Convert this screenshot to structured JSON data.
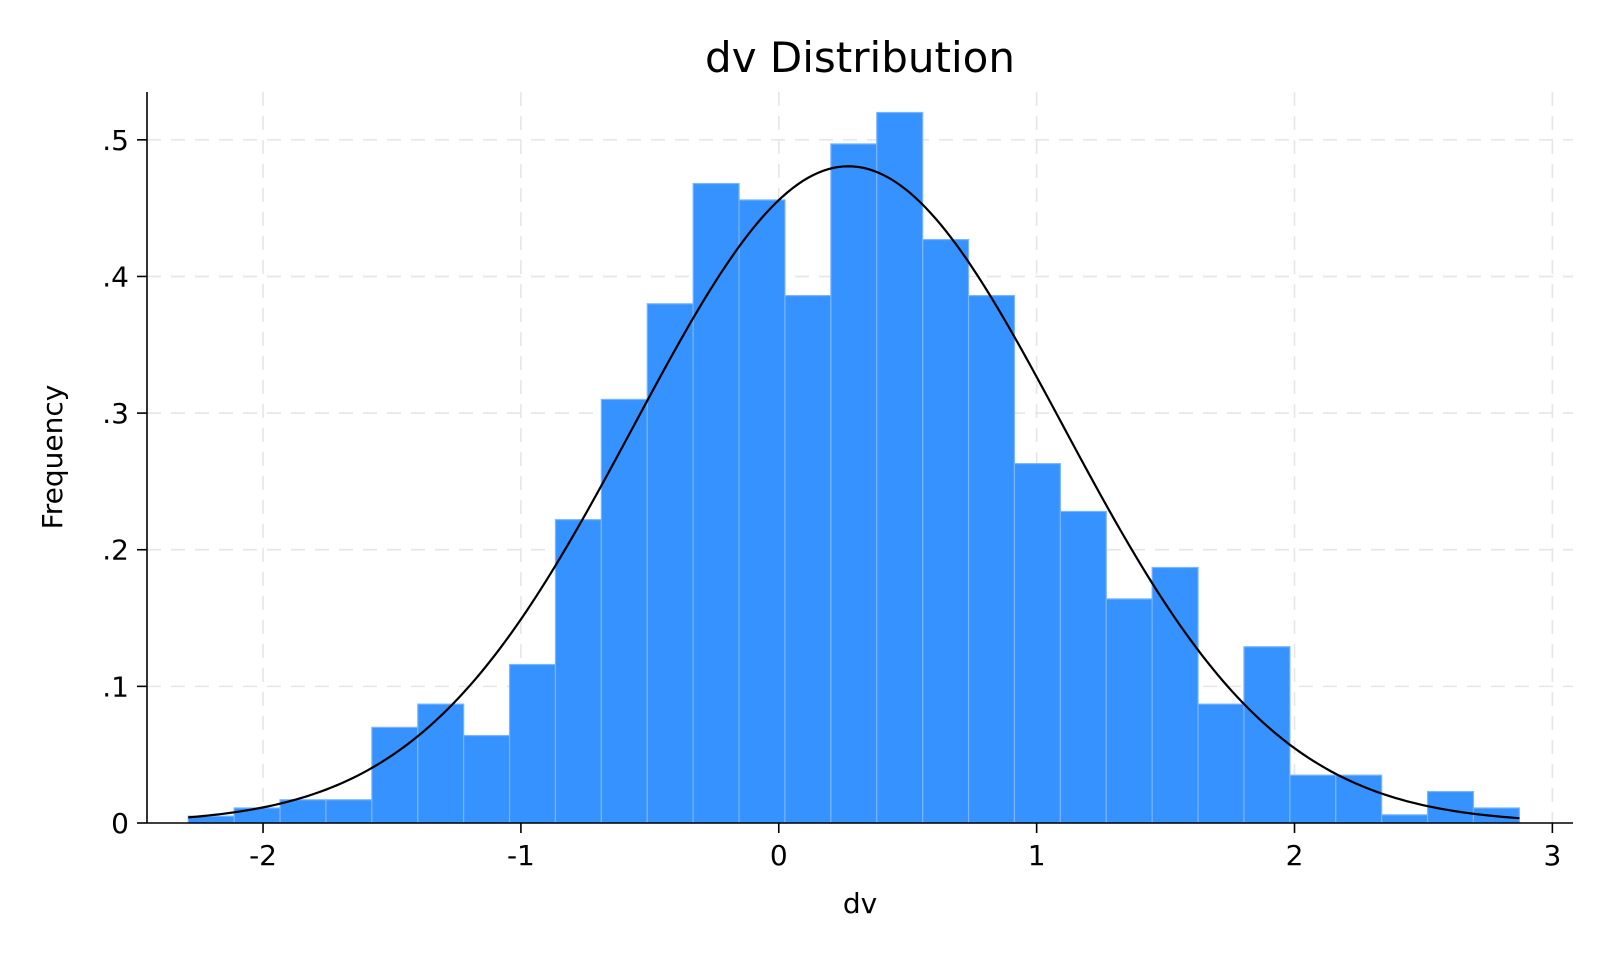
{
  "chart_data": {
    "type": "bar",
    "title": "dv Distribution",
    "xlabel": "dv",
    "ylabel": "Frequency",
    "xlim": [
      -2.45,
      3.08
    ],
    "ylim": [
      0,
      0.535
    ],
    "x_ticks": [
      -2,
      -1,
      0,
      1,
      2,
      3
    ],
    "x_tick_labels": [
      "-2",
      "-1",
      "0",
      "1",
      "2",
      "3"
    ],
    "y_ticks": [
      0,
      0.1,
      0.2,
      0.3,
      0.4,
      0.5
    ],
    "y_tick_labels": [
      "0",
      ".1",
      ".2",
      ".3",
      ".4",
      ".5"
    ],
    "grid": true,
    "bar_color": "#3592ff",
    "bin_width": 0.178,
    "bins": [
      {
        "x0": -2.29,
        "value": 0.005
      },
      {
        "x0": -2.112,
        "value": 0.011
      },
      {
        "x0": -1.934,
        "value": 0.017
      },
      {
        "x0": -1.756,
        "value": 0.017
      },
      {
        "x0": -1.578,
        "value": 0.07
      },
      {
        "x0": -1.4,
        "value": 0.087
      },
      {
        "x0": -1.222,
        "value": 0.064
      },
      {
        "x0": -1.044,
        "value": 0.116
      },
      {
        "x0": -0.866,
        "value": 0.222
      },
      {
        "x0": -0.688,
        "value": 0.31
      },
      {
        "x0": -0.51,
        "value": 0.38
      },
      {
        "x0": -0.332,
        "value": 0.468
      },
      {
        "x0": -0.154,
        "value": 0.456
      },
      {
        "x0": 0.024,
        "value": 0.386
      },
      {
        "x0": 0.202,
        "value": 0.497
      },
      {
        "x0": 0.38,
        "value": 0.52
      },
      {
        "x0": 0.558,
        "value": 0.427
      },
      {
        "x0": 0.736,
        "value": 0.386
      },
      {
        "x0": 0.914,
        "value": 0.263
      },
      {
        "x0": 1.092,
        "value": 0.228
      },
      {
        "x0": 1.27,
        "value": 0.164
      },
      {
        "x0": 1.448,
        "value": 0.187
      },
      {
        "x0": 1.626,
        "value": 0.087
      },
      {
        "x0": 1.804,
        "value": 0.129
      },
      {
        "x0": 1.982,
        "value": 0.035
      },
      {
        "x0": 2.16,
        "value": 0.035
      },
      {
        "x0": 2.338,
        "value": 0.006
      },
      {
        "x0": 2.516,
        "value": 0.023
      },
      {
        "x0": 2.694,
        "value": 0.011
      }
    ],
    "normal_curve": {
      "mean": 0.27,
      "sd": 0.83,
      "x_start": -2.29,
      "x_end": 2.872,
      "color": "#000000"
    }
  }
}
